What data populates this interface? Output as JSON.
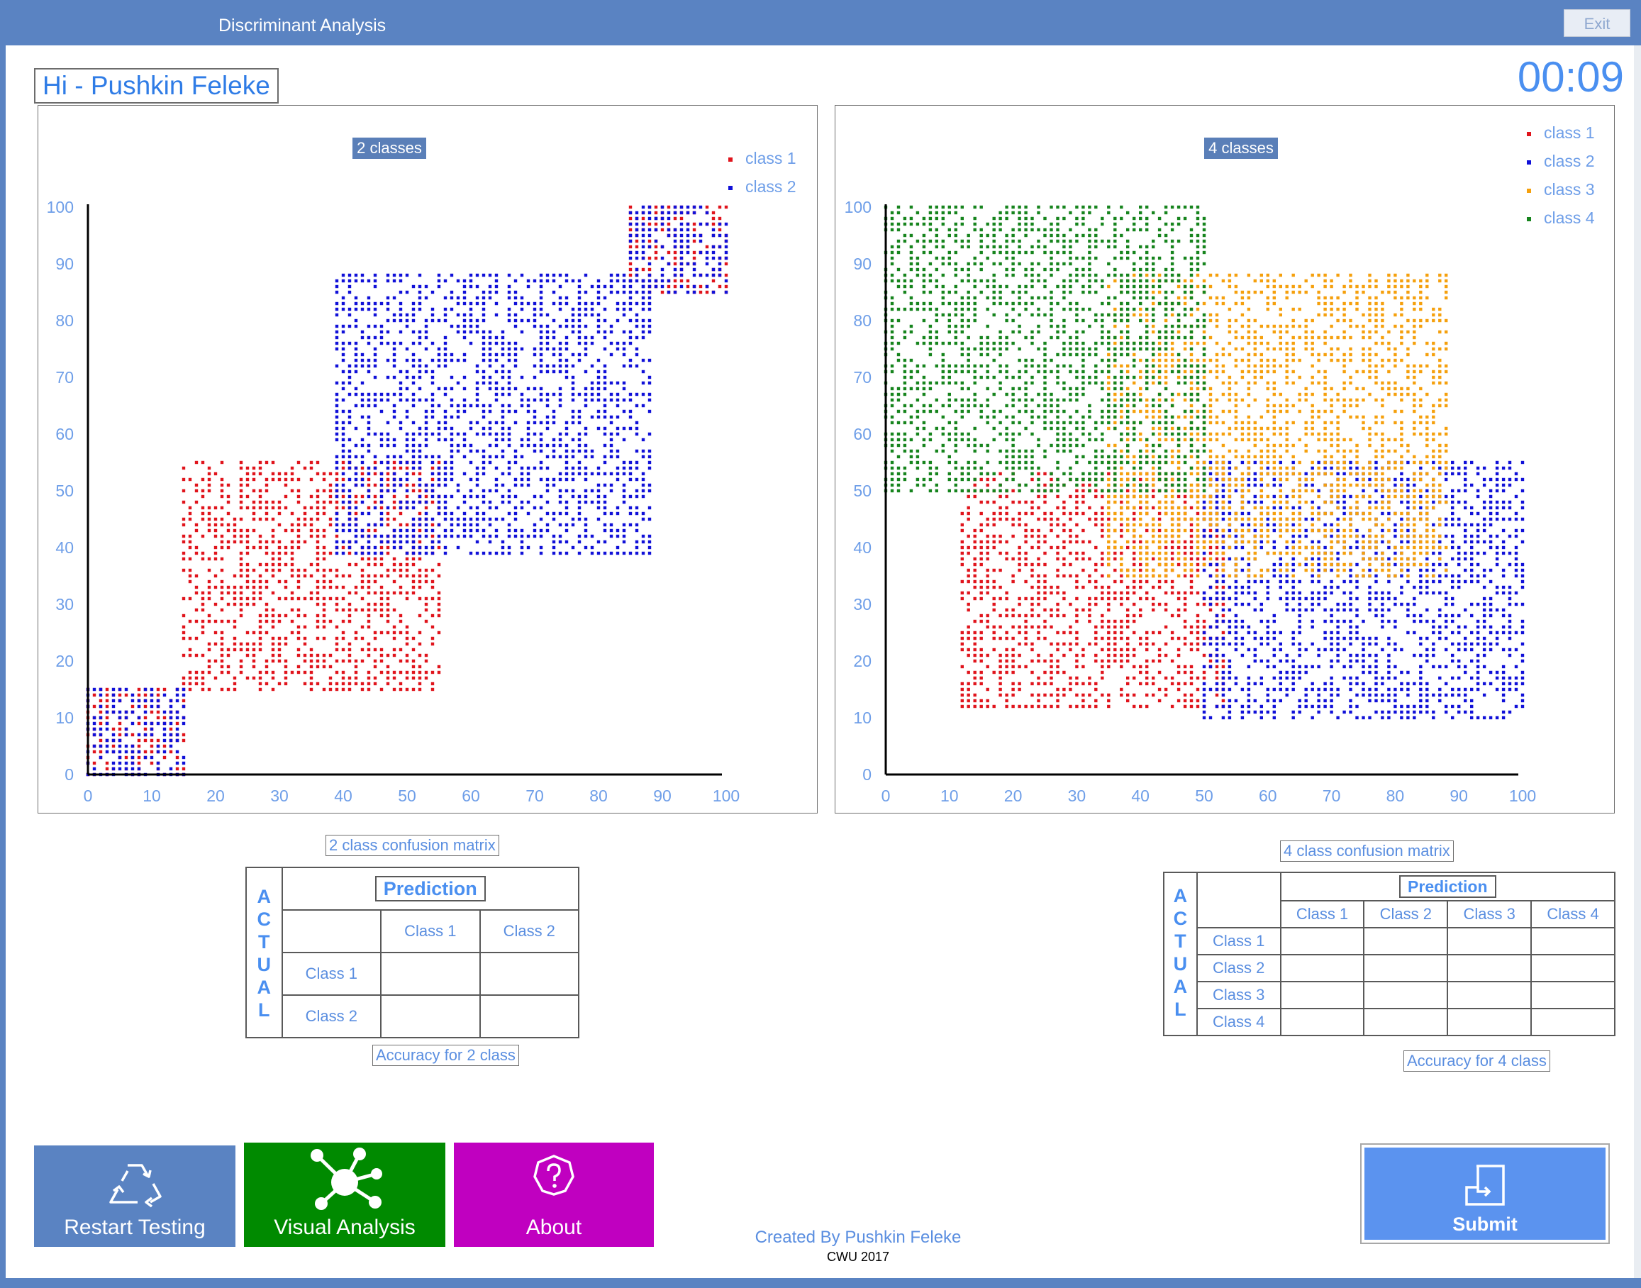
{
  "window": {
    "title": "Discriminant Analysis",
    "exit_label": "Exit"
  },
  "header": {
    "greeting": "Hi - Pushkin Feleke",
    "timer": "00:09"
  },
  "chart_data": [
    {
      "type": "scatter",
      "title": "2 classes",
      "xlim": [
        0,
        100
      ],
      "ylim": [
        0,
        100
      ],
      "xticks": [
        "0",
        "10",
        "20",
        "30",
        "40",
        "50",
        "60",
        "70",
        "80",
        "90",
        "100"
      ],
      "yticks": [
        "0",
        "10",
        "20",
        "30",
        "40",
        "50",
        "60",
        "70",
        "80",
        "90",
        "100"
      ],
      "legend_position": "top-right",
      "series": [
        {
          "name": "class 1",
          "color": "#e0141c",
          "regions": [
            {
              "x": [
                0,
                15
              ],
              "y": [
                0,
                15
              ]
            },
            {
              "x": [
                15,
                55
              ],
              "y": [
                15,
                55
              ]
            },
            {
              "x": [
                85,
                100
              ],
              "y": [
                85,
                100
              ]
            }
          ]
        },
        {
          "name": "class 2",
          "color": "#1010d8",
          "regions": [
            {
              "x": [
                0,
                15
              ],
              "y": [
                0,
                15
              ]
            },
            {
              "x": [
                39,
                88
              ],
              "y": [
                39,
                88
              ]
            },
            {
              "x": [
                85,
                100
              ],
              "y": [
                85,
                100
              ]
            }
          ]
        }
      ]
    },
    {
      "type": "scatter",
      "title": "4 classes",
      "xlim": [
        0,
        100
      ],
      "ylim": [
        0,
        100
      ],
      "xticks": [
        "0",
        "10",
        "20",
        "30",
        "40",
        "50",
        "60",
        "70",
        "80",
        "90",
        "100"
      ],
      "yticks": [
        "0",
        "10",
        "20",
        "30",
        "40",
        "50",
        "60",
        "70",
        "80",
        "90",
        "100"
      ],
      "legend_position": "top-right",
      "series": [
        {
          "name": "class 1",
          "color": "#e0141c",
          "regions": [
            {
              "x": [
                12,
                53
              ],
              "y": [
                12,
                53
              ]
            }
          ]
        },
        {
          "name": "class 2",
          "color": "#1010d8",
          "regions": [
            {
              "x": [
                50,
                100
              ],
              "y": [
                10,
                55
              ]
            }
          ]
        },
        {
          "name": "class 3",
          "color": "#f5a00d",
          "regions": [
            {
              "x": [
                35,
                88
              ],
              "y": [
                35,
                88
              ]
            }
          ]
        },
        {
          "name": "class 4",
          "color": "#16841d",
          "regions": [
            {
              "x": [
                0,
                50
              ],
              "y": [
                50,
                100
              ]
            }
          ]
        }
      ]
    }
  ],
  "cm2": {
    "title": "2 class confusion matrix",
    "prediction": "Prediction",
    "actual_letters": [
      "A",
      "C",
      "T",
      "U",
      "A",
      "L"
    ],
    "classes": [
      "Class 1",
      "Class 2"
    ],
    "accuracy": "Accuracy for 2 class"
  },
  "cm4": {
    "title": "4 class confusion matrix",
    "prediction": "Prediction",
    "actual_letters": [
      "A",
      "C",
      "T",
      "U",
      "A",
      "L"
    ],
    "classes": [
      "Class 1",
      "Class 2",
      "Class 3",
      "Class 4"
    ],
    "accuracy": "Accuracy for 4 class"
  },
  "buttons": {
    "restart": {
      "label": "Restart Testing",
      "color": "#5a83c2",
      "icon": "recycle-icon"
    },
    "visual": {
      "label": "Visual Analysis",
      "color": "#008a00",
      "icon": "network-icon"
    },
    "about": {
      "label": "About",
      "color": "#c000c0",
      "icon": "question-icon"
    },
    "submit": {
      "label": "Submit",
      "color": "#5b93ef",
      "icon": "submit-icon"
    }
  },
  "footer": {
    "credit": "Created By Pushkin Feleke",
    "year": "CWU 2017"
  }
}
